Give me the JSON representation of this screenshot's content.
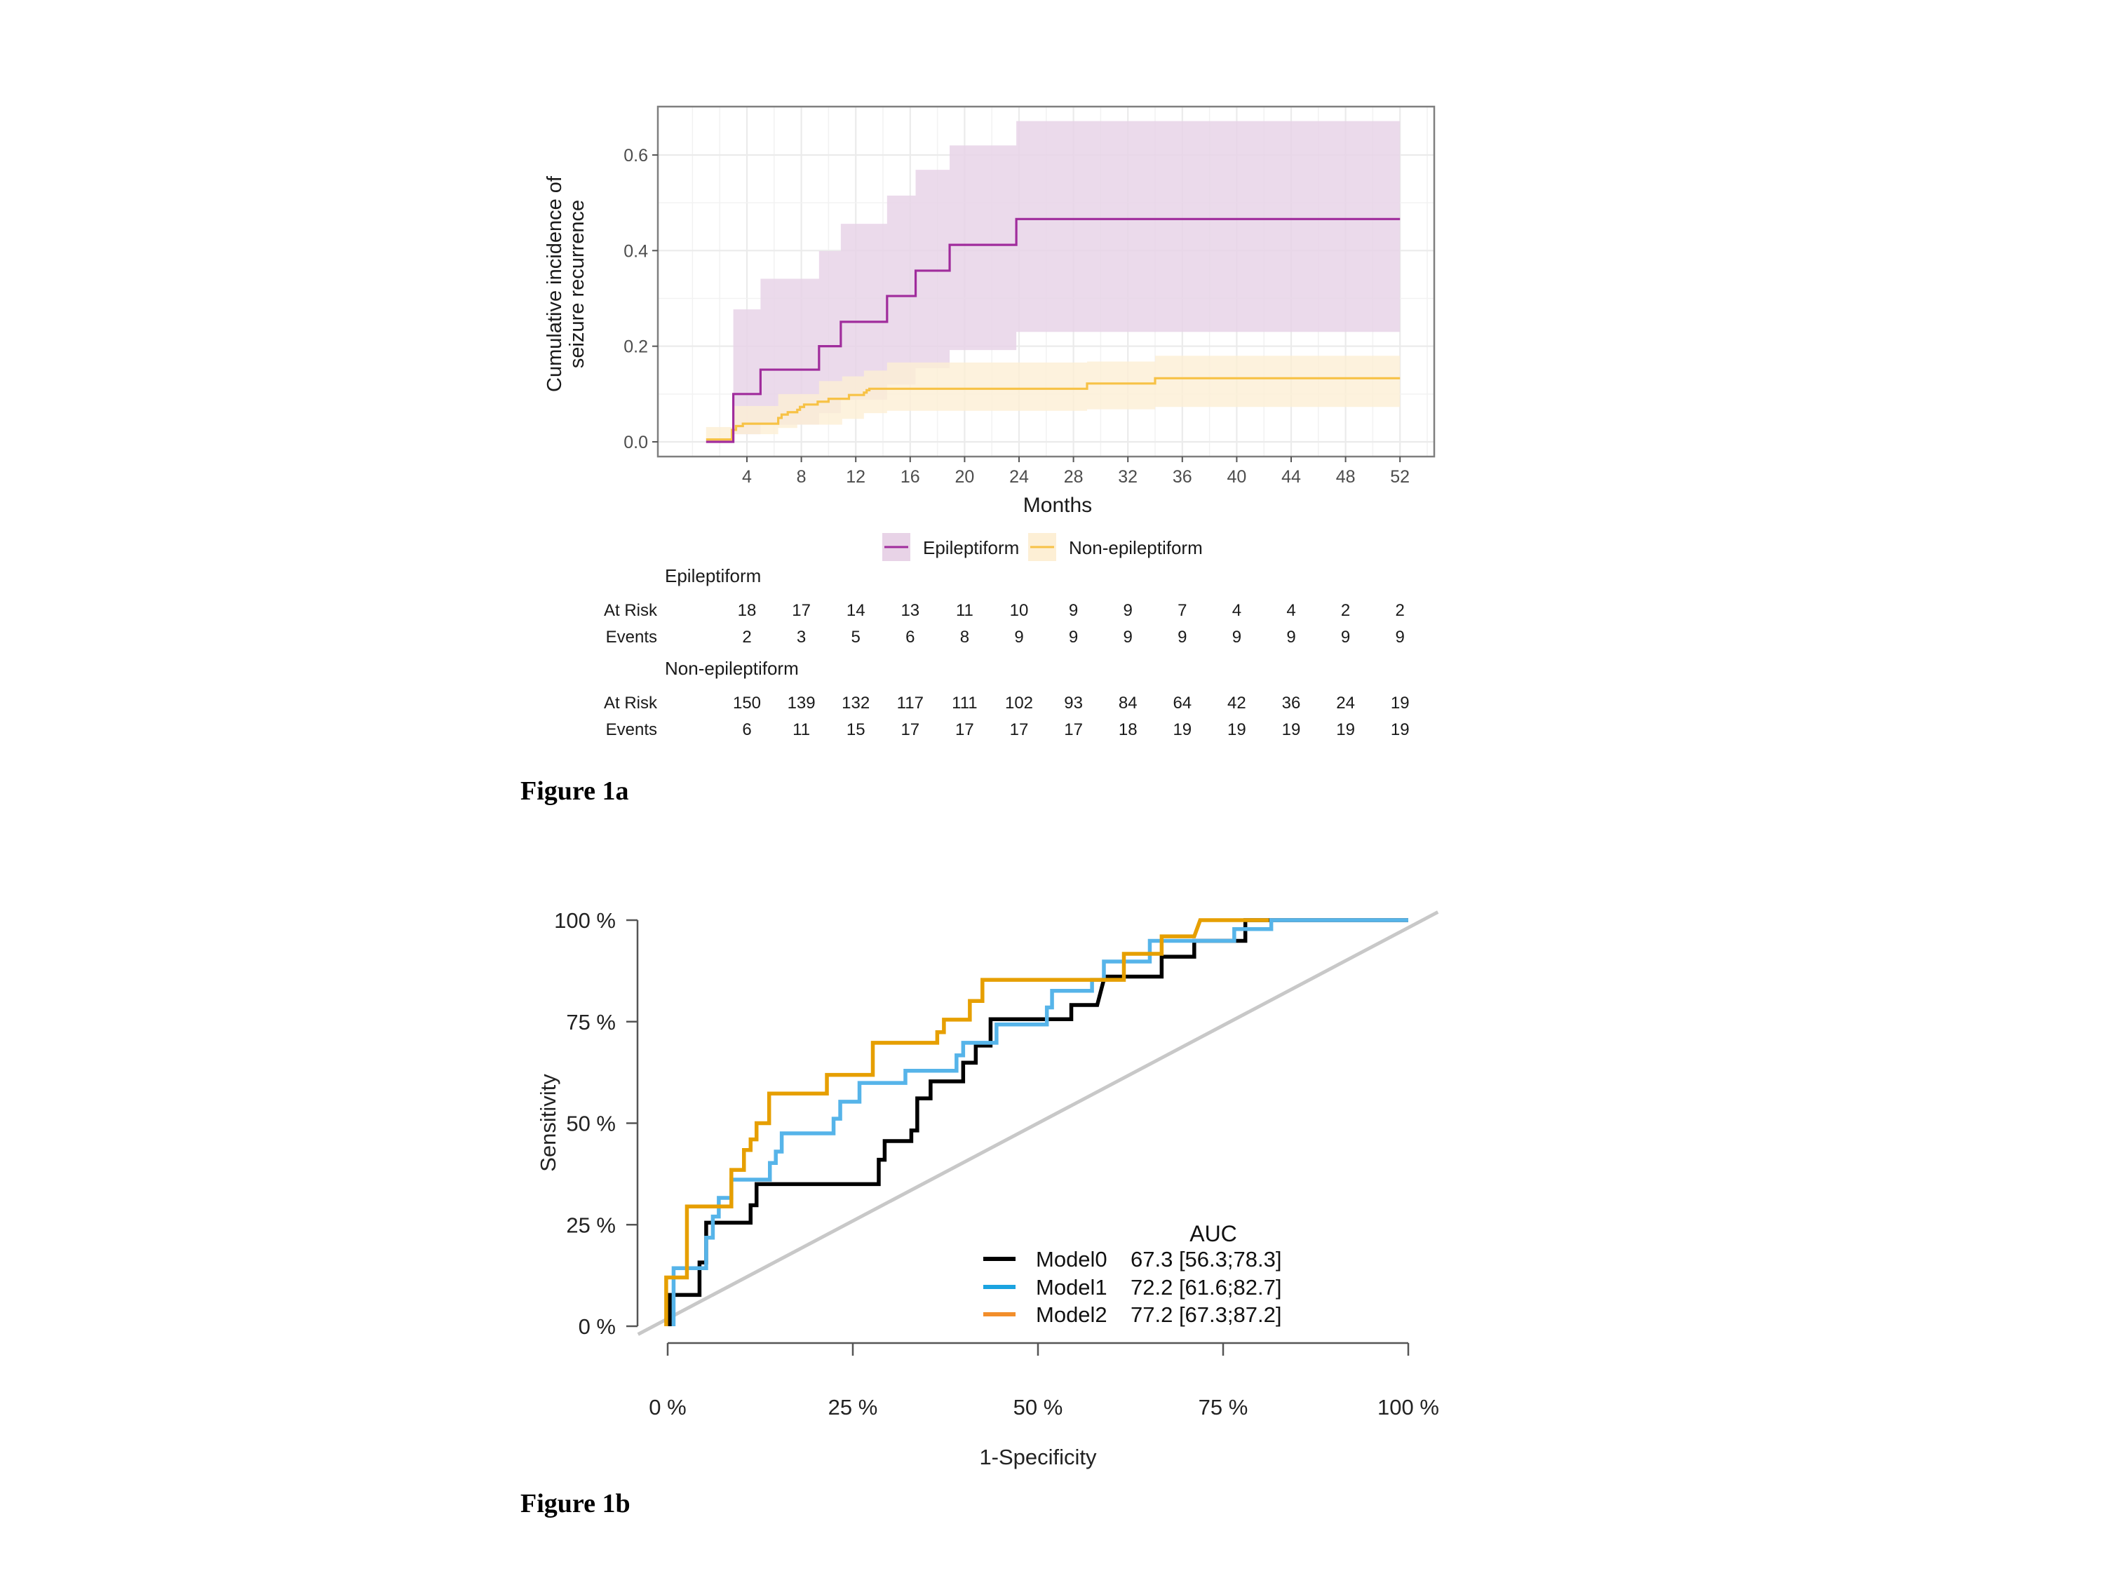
{
  "figures": [
    {
      "caption": "Figure 1a",
      "chart_data": {
        "type": "line",
        "subtype": "cumulative-incidence-step",
        "title": "",
        "xlabel": "Months",
        "ylabel": "Cumulative incidence of seizure recurrence",
        "ylabel_lines": [
          "Cumulative incidence of",
          "seizure recurrence"
        ],
        "xlim": [
          -1.2,
          54.5
        ],
        "ylim": [
          -0.04,
          0.71
        ],
        "xticks": [
          4,
          8,
          12,
          16,
          20,
          24,
          28,
          32,
          36,
          40,
          44,
          48,
          52
        ],
        "xtick_labels": [
          "4",
          "8",
          "12",
          "16",
          "20",
          "24",
          "28",
          "32",
          "36",
          "40",
          "44",
          "48",
          "52"
        ],
        "yticks": [
          0.0,
          0.2,
          0.4,
          0.6
        ],
        "ytick_labels": [
          "0.0",
          "0.2",
          "0.4",
          "0.6"
        ],
        "x_minor_grid": [
          0,
          2,
          6,
          10,
          14,
          18,
          22,
          26,
          30,
          34,
          38,
          42,
          46,
          50,
          54
        ],
        "y_minor_grid": [
          0.1,
          0.3,
          0.5
        ],
        "grid": true,
        "legend_position": "bottom",
        "series": [
          {
            "name": "Epileptiform",
            "color": "#A02C9C",
            "band_color": "#E8D3E7",
            "step_x": [
              1,
              3,
              5,
              9.3,
              10.9,
              14.3,
              16.4,
              18.9,
              23.8,
              52
            ],
            "step_y": [
              0.0,
              0.1,
              0.151,
              0.2,
              0.251,
              0.305,
              0.358,
              0.412,
              0.466,
              0.466
            ],
            "ci_x": [
              1,
              3,
              5,
              9.3,
              10.9,
              14.3,
              16.4,
              18.9,
              23.8,
              52
            ],
            "ci_lower": [
              0.0,
              0.016,
              0.036,
              0.06,
              0.088,
              0.12,
              0.154,
              0.192,
              0.23,
              0.23
            ],
            "ci_upper": [
              0.0,
              0.277,
              0.341,
              0.399,
              0.456,
              0.515,
              0.569,
              0.62,
              0.671,
              0.671
            ]
          },
          {
            "name": "Non-epileptiform",
            "color": "#F7C246",
            "band_color": "#FDEFD5",
            "step_x": [
              1,
              2.9,
              3.2,
              3.7,
              6.3,
              6.55,
              7.0,
              7.7,
              7.9,
              8.2,
              9.2,
              10.0,
              11.5,
              12.6,
              12.8,
              13.0,
              29,
              34,
              52
            ],
            "step_y": [
              0.005,
              0.025,
              0.033,
              0.038,
              0.05,
              0.057,
              0.062,
              0.067,
              0.073,
              0.078,
              0.084,
              0.09,
              0.098,
              0.103,
              0.108,
              0.111,
              0.122,
              0.133,
              0.133
            ],
            "ci_x": [
              1,
              3,
              5,
              6.3,
              7.7,
              9.3,
              11,
              12.6,
              14.3,
              29,
              34,
              52
            ],
            "ci_lower": [
              0.0,
              0.016,
              0.016,
              0.029,
              0.036,
              0.036,
              0.048,
              0.06,
              0.065,
              0.068,
              0.073,
              0.082
            ],
            "ci_upper": [
              0.031,
              0.075,
              0.075,
              0.1,
              0.1,
              0.127,
              0.137,
              0.149,
              0.166,
              0.168,
              0.18,
              0.197
            ]
          }
        ]
      },
      "risk_table": {
        "time_points": [
          4,
          8,
          12,
          16,
          20,
          24,
          28,
          32,
          36,
          40,
          44,
          48,
          52
        ],
        "groups": [
          {
            "name": "Epileptiform",
            "rows": [
              {
                "label": "At Risk",
                "values": [
                  "18",
                  "17",
                  "14",
                  "13",
                  "11",
                  "10",
                  "9",
                  "9",
                  "7",
                  "4",
                  "4",
                  "2",
                  "2"
                ]
              },
              {
                "label": "Events",
                "values": [
                  "2",
                  "3",
                  "5",
                  "6",
                  "8",
                  "9",
                  "9",
                  "9",
                  "9",
                  "9",
                  "9",
                  "9",
                  "9"
                ]
              }
            ]
          },
          {
            "name": "Non-epileptiform",
            "rows": [
              {
                "label": "At Risk",
                "values": [
                  "150",
                  "139",
                  "132",
                  "117",
                  "111",
                  "102",
                  "93",
                  "84",
                  "64",
                  "42",
                  "36",
                  "24",
                  "19"
                ]
              },
              {
                "label": "Events",
                "values": [
                  "6",
                  "11",
                  "15",
                  "17",
                  "17",
                  "17",
                  "17",
                  "18",
                  "19",
                  "19",
                  "19",
                  "19",
                  "19"
                ]
              }
            ]
          }
        ]
      }
    },
    {
      "caption": "Figure 1b",
      "chart_data": {
        "type": "line",
        "subtype": "roc",
        "title": "",
        "xlabel": "1-Specificity",
        "ylabel": "Sensitivity",
        "xlim": [
          0,
          100
        ],
        "ylim": [
          0,
          100
        ],
        "xticks": [
          0,
          25,
          50,
          75,
          100
        ],
        "xtick_labels": [
          "0 %",
          "25 %",
          "50 %",
          "75 %",
          "100 %"
        ],
        "yticks": [
          0,
          25,
          50,
          75,
          100
        ],
        "ytick_labels": [
          "0 %",
          "25 %",
          "50 %",
          "75 %",
          "100 %"
        ],
        "grid": false,
        "legend_position": "bottom-right",
        "legend_header": "AUC",
        "reference_line": {
          "from": [
            -4,
            -2
          ],
          "to": [
            104,
            102
          ],
          "color": "#C8C8C8"
        },
        "series": [
          {
            "name": "Model0",
            "auc_label": "67.3 [56.3;78.3]",
            "color": "#000000",
            "legend_color": "#000000",
            "points": [
              [
                0.3,
                0
              ],
              [
                0.3,
                7.7
              ],
              [
                4.3,
                7.7
              ],
              [
                4.3,
                15.7
              ],
              [
                5.2,
                15.7
              ],
              [
                5.2,
                25.5
              ],
              [
                11.2,
                25.5
              ],
              [
                11.2,
                29.8
              ],
              [
                12,
                29.8
              ],
              [
                12,
                35
              ],
              [
                28.5,
                35
              ],
              [
                28.5,
                41
              ],
              [
                29.3,
                41
              ],
              [
                29.3,
                45.6
              ],
              [
                32.9,
                45.6
              ],
              [
                32.9,
                48.2
              ],
              [
                33.7,
                48.2
              ],
              [
                33.7,
                56.1
              ],
              [
                35.5,
                56.1
              ],
              [
                35.5,
                60.3
              ],
              [
                39.9,
                60.3
              ],
              [
                39.9,
                64.9
              ],
              [
                41.6,
                64.9
              ],
              [
                41.6,
                69.1
              ],
              [
                43.6,
                69.1
              ],
              [
                43.6,
                75.6
              ],
              [
                54.5,
                75.6
              ],
              [
                54.5,
                79.1
              ],
              [
                58,
                79.1
              ],
              [
                59,
                86.1
              ],
              [
                66.7,
                86.1
              ],
              [
                66.7,
                91
              ],
              [
                71.1,
                91
              ],
              [
                71.1,
                94.9
              ],
              [
                78,
                94.9
              ],
              [
                78,
                100
              ],
              [
                100,
                100
              ]
            ]
          },
          {
            "name": "Model1",
            "auc_label": "72.2 [61.6;82.7]",
            "color": "#56B4E9",
            "legend_color": "#1BA3E0",
            "points": [
              [
                0.8,
                0
              ],
              [
                0.8,
                14.3
              ],
              [
                5.2,
                14.3
              ],
              [
                5.2,
                21.8
              ],
              [
                6.1,
                21.8
              ],
              [
                6.1,
                27
              ],
              [
                6.9,
                27
              ],
              [
                6.9,
                31.6
              ],
              [
                8.6,
                31.6
              ],
              [
                8.6,
                36.1
              ],
              [
                13.8,
                36.1
              ],
              [
                13.8,
                40.2
              ],
              [
                14.6,
                40.2
              ],
              [
                14.6,
                43
              ],
              [
                15.4,
                43
              ],
              [
                15.4,
                47.5
              ],
              [
                22.4,
                47.5
              ],
              [
                22.4,
                51.1
              ],
              [
                23.3,
                51.1
              ],
              [
                23.3,
                55.3
              ],
              [
                25.9,
                55.3
              ],
              [
                25.9,
                59.9
              ],
              [
                32.1,
                59.9
              ],
              [
                32.1,
                62.9
              ],
              [
                39,
                62.9
              ],
              [
                39,
                66.7
              ],
              [
                39.9,
                66.7
              ],
              [
                39.9,
                69.8
              ],
              [
                44.4,
                69.8
              ],
              [
                44.4,
                74.3
              ],
              [
                51.2,
                74.3
              ],
              [
                51.2,
                78.5
              ],
              [
                51.9,
                78.5
              ],
              [
                51.9,
                82.6
              ],
              [
                57.3,
                82.6
              ],
              [
                57.3,
                85.3
              ],
              [
                58.9,
                85.3
              ],
              [
                58.9,
                89.8
              ],
              [
                65.1,
                89.8
              ],
              [
                65.1,
                94.9
              ],
              [
                76.5,
                94.9
              ],
              [
                76.5,
                97.8
              ],
              [
                81.5,
                97.8
              ],
              [
                81.5,
                100
              ],
              [
                100,
                100
              ]
            ]
          },
          {
            "name": "Model2",
            "auc_label": "77.2 [67.3;87.2]",
            "color": "#E69F00",
            "legend_color": "#F28E2B",
            "points": [
              [
                -0.2,
                0
              ],
              [
                -0.2,
                12
              ],
              [
                2.6,
                12
              ],
              [
                2.6,
                29.5
              ],
              [
                8.6,
                29.5
              ],
              [
                8.6,
                38.5
              ],
              [
                10.3,
                38.5
              ],
              [
                10.3,
                43.4
              ],
              [
                11.2,
                43.4
              ],
              [
                11.2,
                46
              ],
              [
                12,
                46
              ],
              [
                12,
                50
              ],
              [
                13.7,
                50
              ],
              [
                13.7,
                57.3
              ],
              [
                21.5,
                57.3
              ],
              [
                21.5,
                61.9
              ],
              [
                27.7,
                61.9
              ],
              [
                27.7,
                69.8
              ],
              [
                36.4,
                69.8
              ],
              [
                36.4,
                72.4
              ],
              [
                37.3,
                72.4
              ],
              [
                37.3,
                75.5
              ],
              [
                40.8,
                75.5
              ],
              [
                40.8,
                80.1
              ],
              [
                42.5,
                80.1
              ],
              [
                42.5,
                85.3
              ],
              [
                61.6,
                85.3
              ],
              [
                61.6,
                91.7
              ],
              [
                66.7,
                91.7
              ],
              [
                66.7,
                96
              ],
              [
                71.1,
                96
              ],
              [
                71.9,
                100
              ],
              [
                81.2,
                100
              ]
            ]
          }
        ]
      }
    }
  ]
}
